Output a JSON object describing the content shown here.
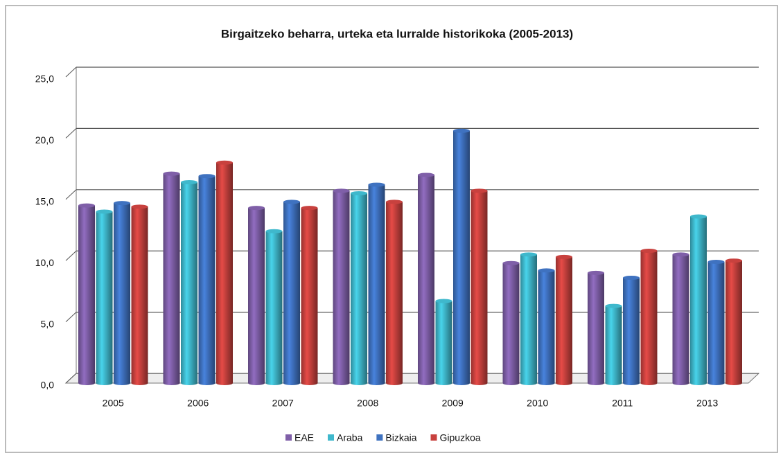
{
  "chart_data": {
    "type": "bar",
    "title": "Birgaitzeko beharra, urteka eta lurralde historikoka (2005-2013)",
    "categories": [
      "2005",
      "2006",
      "2007",
      "2008",
      "2009",
      "2010",
      "2011",
      "2013"
    ],
    "series": [
      {
        "name": "EAE",
        "color": "#7f5fa8",
        "values": [
          14.5,
          17.1,
          14.3,
          15.7,
          17.0,
          9.8,
          9.0,
          10.5
        ]
      },
      {
        "name": "Araba",
        "color": "#3fb8cc",
        "values": [
          14.0,
          16.4,
          12.4,
          15.5,
          6.7,
          10.5,
          6.3,
          13.6
        ]
      },
      {
        "name": "Bizkaia",
        "color": "#3f72c0",
        "values": [
          14.7,
          16.9,
          14.8,
          16.2,
          20.6,
          9.2,
          8.6,
          9.9
        ]
      },
      {
        "name": "Gipuzkoa",
        "color": "#c8413e",
        "values": [
          14.4,
          18.0,
          14.3,
          14.8,
          15.7,
          10.3,
          10.8,
          10.0
        ]
      }
    ],
    "ylim": [
      0,
      25
    ],
    "yticks": [
      {
        "value": 0,
        "label": "0,0"
      },
      {
        "value": 5,
        "label": "5,0"
      },
      {
        "value": 10,
        "label": "10,0"
      },
      {
        "value": 15,
        "label": "15,0"
      },
      {
        "value": 20,
        "label": "20,0"
      },
      {
        "value": 25,
        "label": "25,0"
      }
    ],
    "grid": true,
    "legend": "bottom"
  }
}
